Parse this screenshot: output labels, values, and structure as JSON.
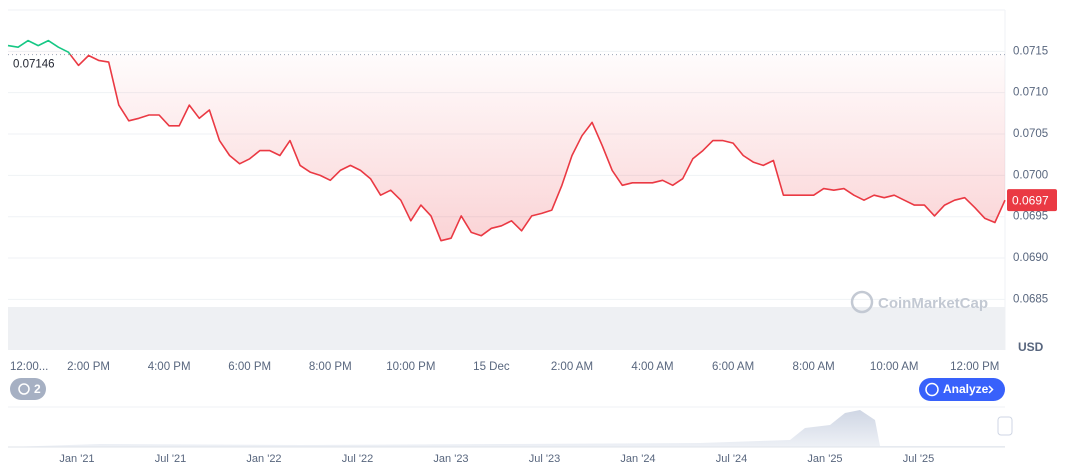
{
  "chart_data": {
    "type": "line",
    "categories": [
      "12:00...",
      null,
      null,
      null,
      null,
      null,
      null,
      null,
      "2:00 PM",
      null,
      null,
      null,
      null,
      null,
      null,
      null,
      "4:00 PM",
      null,
      null,
      null,
      null,
      null,
      null,
      null,
      "6:00 PM",
      null,
      null,
      null,
      null,
      null,
      null,
      null,
      "8:00 PM",
      null,
      null,
      null,
      null,
      null,
      null,
      null,
      "10:00 PM",
      null,
      null,
      null,
      null,
      null,
      null,
      null,
      "15 Dec",
      null,
      null,
      null,
      null,
      null,
      null,
      null,
      "2:00 AM",
      null,
      null,
      null,
      null,
      null,
      null,
      null,
      "4:00 AM",
      null,
      null,
      null,
      null,
      null,
      null,
      null,
      "6:00 AM",
      null,
      null,
      null,
      null,
      null,
      null,
      null,
      "8:00 AM",
      null,
      null,
      null,
      null,
      null,
      null,
      null,
      "10:00 AM",
      null,
      null,
      null,
      null,
      null,
      null,
      null,
      "12:00 PM",
      null,
      null,
      null
    ],
    "series": [
      {
        "color": "#ea3943",
        "values": [
          0.07157,
          0.07155,
          0.07163,
          0.07157,
          0.07163,
          0.07155,
          0.07149,
          0.07133,
          0.07145,
          0.07139,
          0.07137,
          0.07085,
          0.07066,
          0.07069,
          0.07073,
          0.07073,
          0.0706,
          0.0706,
          0.07085,
          0.07069,
          0.07079,
          0.07042,
          0.07024,
          0.07014,
          0.0702,
          0.0703,
          0.0703,
          0.07024,
          0.07042,
          0.07012,
          0.07004,
          0.07,
          0.06994,
          0.07006,
          0.07012,
          0.07006,
          0.06996,
          0.06976,
          0.06982,
          0.0697,
          0.06945,
          0.06964,
          0.06951,
          0.06921,
          0.06924,
          0.06951,
          0.06931,
          0.06927,
          0.06936,
          0.06939,
          0.06945,
          0.06933,
          0.06951,
          0.06954,
          0.06958,
          0.06988,
          0.07024,
          0.07048,
          0.07064,
          0.07036,
          0.07006,
          0.06988,
          0.06991,
          0.06991,
          0.06991,
          0.06994,
          0.06988,
          0.06996,
          0.0702,
          0.0703,
          0.07042,
          0.07042,
          0.07039,
          0.07024,
          0.07016,
          0.07012,
          0.07018,
          0.06976,
          0.06976,
          0.06976,
          0.06976,
          0.06984,
          0.06982,
          0.06984,
          0.06976,
          0.0697,
          0.06976,
          0.06973,
          0.06976,
          0.0697,
          0.06964,
          0.06964,
          0.06951,
          0.06964,
          0.0697,
          0.06973,
          0.06961,
          0.06948,
          0.06943,
          0.0697
        ]
      }
    ],
    "up_color": "#16c784",
    "reference": 0.07146,
    "ylim": [
      0.0679,
      0.072
    ],
    "yticks": [
      0.0685,
      {
        "value": 0.069,
        "label": "0.0690"
      },
      0.0695,
      {
        "value": 0.07,
        "label": "0.0700"
      },
      0.0705,
      {
        "value": 0.071,
        "label": "0.0710"
      },
      0.0715
    ],
    "grid": true,
    "y_axis_label": "USD",
    "watermark": "CoinMarketCap",
    "navigator_labels": [
      "Jan '21",
      "Jul '21",
      "Jan '22",
      "Jul '22",
      "Jan '23",
      "Jul '23",
      "Jan '24",
      "Jul '24",
      "Jan '25",
      "Jul '25"
    ]
  },
  "toolbar": {
    "history_count": "2",
    "analyze_button": "Analyze"
  }
}
